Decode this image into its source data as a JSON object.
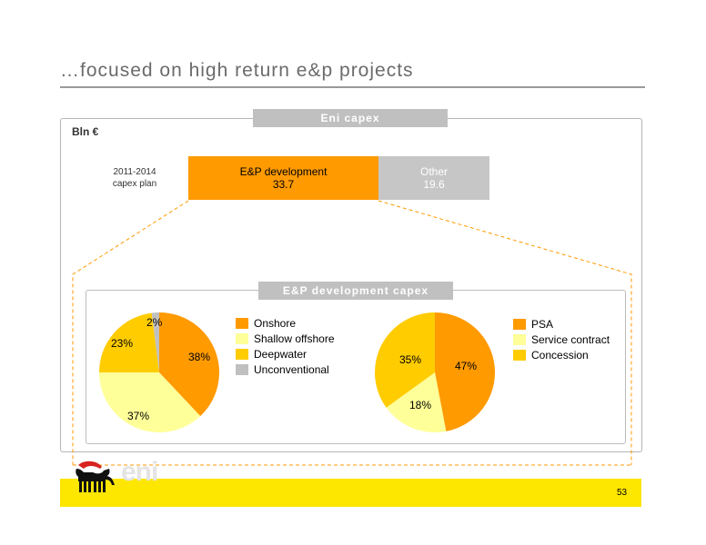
{
  "slide": {
    "title": "…focused on high return e&p projects",
    "units": "Bln €",
    "capex_header": "Eni capex",
    "plan_label_line1": "2011-2014",
    "plan_label_line2": "capex plan",
    "bar_ep_label": "E&P development",
    "bar_ep_value": "33.7",
    "bar_other_label": "Other",
    "bar_other_value": "19.6",
    "ep_header": "E&P development capex",
    "page_number": "53",
    "logo_text": "eni"
  },
  "colors": {
    "orange": "#ff9a00",
    "pale_yellow": "#ffff99",
    "amber": "#ffcc00",
    "grey": "#c0c0c0",
    "footer_yellow": "#fde600"
  },
  "chart_data": [
    {
      "type": "bar",
      "categories": [
        "E&P development",
        "Other"
      ],
      "values": [
        33.7,
        19.6
      ],
      "stacked": true,
      "category_label": "2011-2014 capex plan",
      "units": "Bln €"
    },
    {
      "type": "pie",
      "labels": [
        "Onshore",
        "Shallow offshore",
        "Deepwater",
        "Unconventional"
      ],
      "values": [
        38,
        37,
        23,
        2
      ],
      "value_labels": [
        "38%",
        "37%",
        "23%",
        "2%"
      ],
      "colors": [
        "#ff9a00",
        "#ffff99",
        "#ffcc00",
        "#c0c0c0"
      ],
      "legend": "right"
    },
    {
      "type": "pie",
      "labels": [
        "PSA",
        "Service contract",
        "Concession"
      ],
      "values": [
        47,
        18,
        35
      ],
      "value_labels": [
        "47%",
        "18%",
        "35%"
      ],
      "colors": [
        "#ff9a00",
        "#ffff99",
        "#ffcc00"
      ],
      "legend": "right"
    }
  ]
}
